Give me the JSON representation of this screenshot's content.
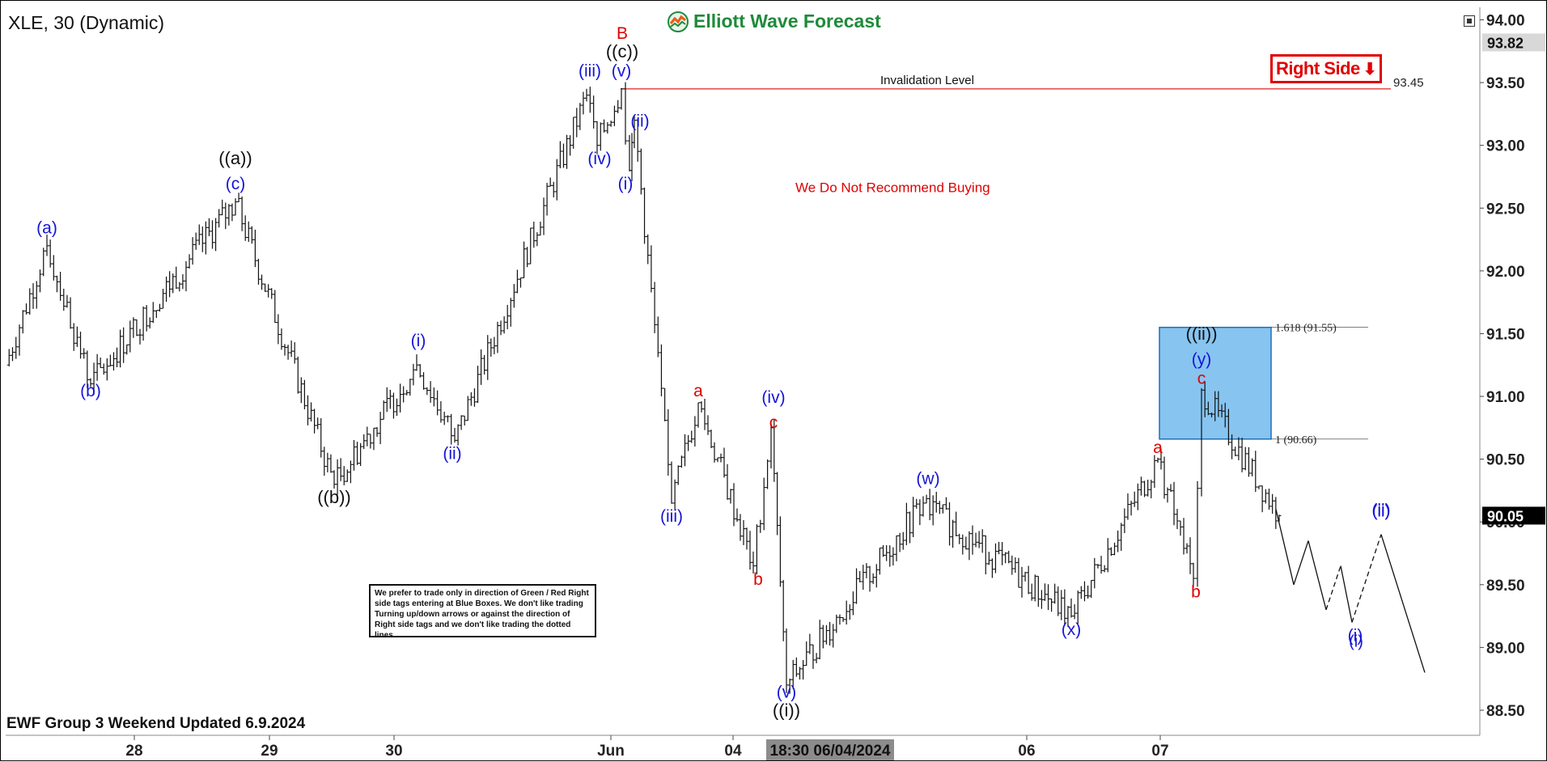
{
  "header": {
    "symbol_title": "XLE, 30 (Dynamic)",
    "brand_name": "Elliott Wave Forecast",
    "updated_text": "EWF Group 3 Weekend Updated 6.9.2024",
    "right_side_label": "Right Side",
    "notice_text": "We prefer to trade only in direction of Green / Red Right side tags entering at Blue Boxes. We don't like trading Turning up/down arrows or against the direction of Right side tags and we don't like trading the dotted lines."
  },
  "colors": {
    "wave_blue": "#1515d8",
    "wave_red": "#e00000",
    "bar": "#111111",
    "invalidation_line": "#e02020",
    "blue_box_fill": "#87c4f0",
    "blue_box_border": "#1f6fb5"
  },
  "chart_data": {
    "type": "ohlc",
    "y_axis": {
      "ticks": [
        "94.00",
        "93.50",
        "93.00",
        "92.50",
        "92.00",
        "91.50",
        "91.00",
        "90.50",
        "90.00",
        "89.50",
        "89.00",
        "88.50"
      ],
      "ylim": [
        88.3,
        94.1
      ],
      "current_price_label": "93.82",
      "last_price_label": "90.05"
    },
    "x_axis": {
      "ticks": [
        "28",
        "29",
        "30",
        "Jun",
        "04",
        "06",
        "07"
      ],
      "cursor_label": "18:30 06/04/2024"
    },
    "price_path": [
      {
        "label": "start",
        "value": 91.25
      },
      {
        "label": "(a)",
        "value": 92.2
      },
      {
        "label": "(b)",
        "value": 91.1
      },
      {
        "label": "(c) ((a))",
        "value": 92.55
      },
      {
        "label": "((b))",
        "value": 90.3
      },
      {
        "label": "(i)",
        "value": 91.25
      },
      {
        "label": "(ii)",
        "value": 90.65
      },
      {
        "label": "(iii)",
        "value": 93.4
      },
      {
        "label": "(iv)",
        "value": 93.0
      },
      {
        "label": "(v) ((c)) B",
        "value": 93.45
      },
      {
        "label": "(i)",
        "value": 92.8
      },
      {
        "label": "(ii)",
        "value": 93.2
      },
      {
        "label": "(iii)",
        "value": 90.15
      },
      {
        "label": "a",
        "value": 90.95
      },
      {
        "label": "b",
        "value": 89.65
      },
      {
        "label": "c (iv)",
        "value": 90.75
      },
      {
        "label": "(v) ((i))",
        "value": 88.7
      },
      {
        "label": "(w)",
        "value": 90.15
      },
      {
        "label": "(x)",
        "value": 89.25
      },
      {
        "label": "a",
        "value": 90.5
      },
      {
        "label": "b",
        "value": 89.55
      },
      {
        "label": "c (y) ((ii))",
        "value": 91.05
      },
      {
        "label": "last",
        "value": 90.05
      }
    ],
    "projection": {
      "style": "zigzag path with dashed segments",
      "points": [
        90.1,
        89.5,
        89.85,
        89.3,
        89.65,
        89.2,
        89.9,
        88.8
      ],
      "labels": [
        {
          "text": "(i)",
          "value": 89.2
        },
        {
          "text": "(ii)",
          "value": 89.9
        }
      ]
    },
    "invalidation": {
      "label": "Invalidation Level",
      "value": 93.45,
      "value_label": "93.45"
    },
    "blue_box": {
      "high": 91.55,
      "low": 90.66,
      "high_label": "1.618 (91.55)",
      "low_label": "1 (90.66)"
    },
    "annotation": "We Do Not Recommend Buying",
    "wave_labels": [
      {
        "text": "(a)",
        "color": "blue",
        "value": 92.3
      },
      {
        "text": "(b)",
        "color": "blue",
        "value": 91.0
      },
      {
        "text": "((a))",
        "color": "black",
        "value": 92.85
      },
      {
        "text": "(c)",
        "color": "blue",
        "value": 92.65
      },
      {
        "text": "((b))",
        "color": "black",
        "value": 90.15
      },
      {
        "text": "(i)",
        "color": "blue",
        "value": 91.4
      },
      {
        "text": "(ii)",
        "color": "blue",
        "value": 90.5
      },
      {
        "text": "(iii)",
        "color": "blue",
        "value": 93.55
      },
      {
        "text": "(iv)",
        "color": "blue",
        "value": 92.85
      },
      {
        "text": "B",
        "color": "red",
        "value": 93.85
      },
      {
        "text": "((c))",
        "color": "black",
        "value": 93.7
      },
      {
        "text": "(v)",
        "color": "blue",
        "value": 93.55
      },
      {
        "text": "(ii)",
        "color": "blue",
        "value": 93.15
      },
      {
        "text": "(i)",
        "color": "blue",
        "value": 92.65
      },
      {
        "text": "(iii)",
        "color": "blue",
        "value": 90.0
      },
      {
        "text": "a",
        "color": "red",
        "value": 91.0
      },
      {
        "text": "b",
        "color": "red",
        "value": 89.5
      },
      {
        "text": "(iv)",
        "color": "blue",
        "value": 90.95
      },
      {
        "text": "c",
        "color": "red",
        "value": 90.75
      },
      {
        "text": "(v)",
        "color": "blue",
        "value": 88.6
      },
      {
        "text": "((i))",
        "color": "black",
        "value": 88.45
      },
      {
        "text": "(w)",
        "color": "blue",
        "value": 90.3
      },
      {
        "text": "(x)",
        "color": "blue",
        "value": 89.1
      },
      {
        "text": "a",
        "color": "red",
        "value": 90.55
      },
      {
        "text": "b",
        "color": "red",
        "value": 89.4
      },
      {
        "text": "((ii))",
        "color": "black",
        "value": 91.45
      },
      {
        "text": "(y)",
        "color": "blue",
        "value": 91.25
      },
      {
        "text": "c",
        "color": "red",
        "value": 91.1
      },
      {
        "text": "(i)",
        "color": "blue",
        "value": 89.05
      },
      {
        "text": "(ii)",
        "color": "blue",
        "value": 90.05
      }
    ]
  }
}
